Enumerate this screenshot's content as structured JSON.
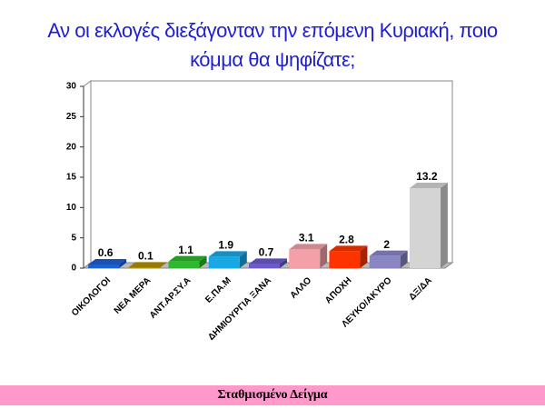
{
  "chart_data": {
    "type": "bar3d",
    "title": "Αν οι εκλογές διεξάγονταν την επόμενη Κυριακή, ποιο κόμμα θα ψηφίζατε;",
    "footer": "Σταθμισμένο Δείγμα",
    "categories": [
      "ΟΙΚΟΛΟΓΟΙ",
      "ΝΕΑ ΜΕΡΑ",
      "ΑΝΤ.ΑΡ.ΣΥ.Α",
      "Ε.ΠΑ.Μ",
      "ΔΗΜΙΟΥΡΓΙΑ ΞΑΝΑ",
      "ΑΛΛΟ",
      "ΑΠΟΧΗ",
      "ΛΕΥΚΟ/ΑΚΥΡΟ",
      "ΔΞ/ΔΑ"
    ],
    "values": [
      0.6,
      0.1,
      1.1,
      1.9,
      0.7,
      3.1,
      2.8,
      2,
      13.2
    ],
    "colors": [
      "#1a5fd6",
      "#b38f00",
      "#2db82d",
      "#19a8e6",
      "#6a5acd",
      "#f4a0a8",
      "#ff3300",
      "#8a86c4",
      "#d4d4d4"
    ],
    "ylim": [
      0,
      30
    ],
    "yticks": [
      0,
      5,
      10,
      15,
      20,
      25,
      30
    ]
  }
}
